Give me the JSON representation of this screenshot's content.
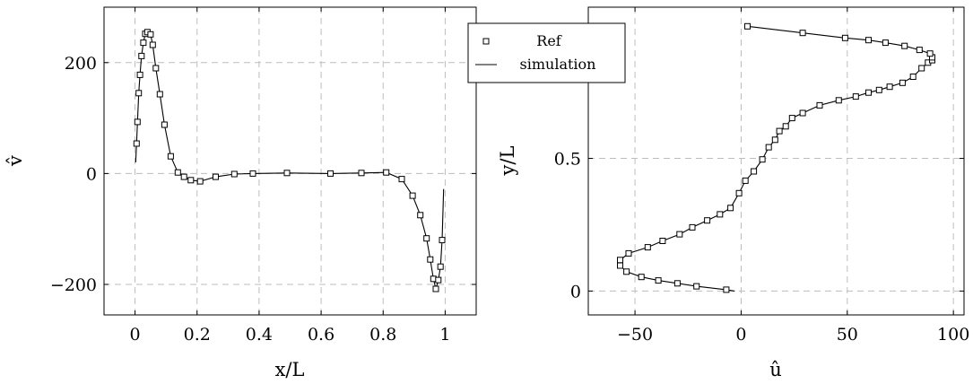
{
  "chart_data": [
    {
      "type": "line",
      "xlabel": "x/L",
      "ylabel": "v̂",
      "xlim": [
        -0.1,
        1.1
      ],
      "ylim": [
        -255,
        300
      ],
      "xticks": [
        0,
        0.2,
        0.4,
        0.6,
        0.8,
        1
      ],
      "xtick_labels": [
        "0",
        "0.2",
        "0.4",
        "0.6",
        "0.8",
        "1"
      ],
      "yticks": [
        -200,
        0,
        200
      ],
      "ytick_labels": [
        "−200",
        "0",
        "200"
      ],
      "grid": true,
      "series": [
        {
          "name": "Ref",
          "style": "markers",
          "marker": "square",
          "x": [
            0.005,
            0.008,
            0.012,
            0.016,
            0.021,
            0.027,
            0.033,
            0.04,
            0.05,
            0.057,
            0.067,
            0.08,
            0.095,
            0.115,
            0.138,
            0.158,
            0.18,
            0.21,
            0.26,
            0.32,
            0.38,
            0.49,
            0.63,
            0.73,
            0.81,
            0.86,
            0.895,
            0.92,
            0.94,
            0.952,
            0.962,
            0.97,
            0.978,
            0.985,
            0.99
          ],
          "y": [
            54,
            93,
            145,
            178,
            212,
            236,
            252,
            255,
            251,
            232,
            190,
            143,
            88,
            31,
            2,
            -6,
            -12,
            -14,
            -6,
            -1,
            0,
            1,
            0,
            1,
            2,
            -10,
            -40,
            -75,
            -117,
            -155,
            -190,
            -208,
            -192,
            -168,
            -120
          ]
        },
        {
          "name": "simulation",
          "style": "line",
          "x": [
            0.002,
            0.005,
            0.008,
            0.012,
            0.016,
            0.021,
            0.027,
            0.033,
            0.04,
            0.047,
            0.05,
            0.057,
            0.067,
            0.08,
            0.095,
            0.115,
            0.138,
            0.158,
            0.18,
            0.21,
            0.26,
            0.32,
            0.38,
            0.49,
            0.63,
            0.73,
            0.81,
            0.86,
            0.895,
            0.92,
            0.94,
            0.952,
            0.962,
            0.97,
            0.978,
            0.985,
            0.99,
            0.995
          ],
          "y": [
            20,
            54,
            93,
            145,
            178,
            212,
            236,
            252,
            255,
            256,
            251,
            232,
            190,
            143,
            88,
            31,
            2,
            -6,
            -12,
            -14,
            -6,
            -1,
            0,
            1,
            0,
            1,
            2,
            -10,
            -40,
            -75,
            -117,
            -155,
            -190,
            -208,
            -192,
            -168,
            -120,
            -28
          ]
        }
      ]
    },
    {
      "type": "line",
      "xlabel": "û",
      "ylabel": "y/L",
      "xlim": [
        -72,
        105
      ],
      "ylim": [
        -0.09,
        1.07
      ],
      "xticks": [
        -50,
        0,
        50,
        100
      ],
      "xtick_labels": [
        "−50",
        "0",
        "50",
        "100"
      ],
      "yticks": [
        0,
        0.5
      ],
      "ytick_labels": [
        "0",
        "0.5"
      ],
      "grid": true,
      "legend": {
        "position": "top-left",
        "entries": [
          {
            "label": "Ref",
            "symbol": "square-marker"
          },
          {
            "label": "simulation",
            "symbol": "line"
          }
        ]
      },
      "series": [
        {
          "name": "Ref",
          "style": "markers",
          "marker": "square",
          "x": [
            -7,
            -21,
            -30,
            -39,
            -47,
            -54,
            -57,
            -57,
            -53,
            -44,
            -37,
            -29,
            -23,
            -16,
            -10,
            -5,
            -1,
            2,
            6,
            10,
            13,
            16,
            18,
            21,
            24,
            29,
            37,
            46,
            54,
            60,
            65,
            70,
            76,
            81,
            85,
            88,
            90,
            90,
            89,
            84,
            77,
            68,
            60,
            49,
            29,
            3
          ],
          "y": [
            0.005,
            0.018,
            0.029,
            0.04,
            0.053,
            0.073,
            0.096,
            0.117,
            0.142,
            0.165,
            0.189,
            0.214,
            0.24,
            0.266,
            0.289,
            0.313,
            0.369,
            0.416,
            0.451,
            0.496,
            0.542,
            0.57,
            0.603,
            0.621,
            0.652,
            0.671,
            0.7,
            0.719,
            0.733,
            0.748,
            0.758,
            0.77,
            0.785,
            0.808,
            0.84,
            0.861,
            0.87,
            0.881,
            0.895,
            0.909,
            0.924,
            0.936,
            0.946,
            0.954,
            0.973,
            0.998
          ]
        },
        {
          "name": "simulation",
          "style": "line",
          "x": [
            -3,
            -7,
            -21,
            -30,
            -39,
            -47,
            -54,
            -57,
            -57,
            -53,
            -44,
            -37,
            -29,
            -23,
            -16,
            -10,
            -5,
            -1,
            2,
            6,
            10,
            13,
            16,
            18,
            21,
            24,
            29,
            37,
            46,
            54,
            60,
            65,
            70,
            76,
            81,
            85,
            88,
            90,
            90,
            89,
            84,
            77,
            68,
            60,
            49,
            29,
            3
          ],
          "y": [
            0.0,
            0.005,
            0.018,
            0.029,
            0.04,
            0.053,
            0.073,
            0.096,
            0.117,
            0.142,
            0.165,
            0.189,
            0.214,
            0.24,
            0.266,
            0.289,
            0.313,
            0.369,
            0.416,
            0.451,
            0.496,
            0.542,
            0.57,
            0.603,
            0.621,
            0.652,
            0.671,
            0.7,
            0.719,
            0.733,
            0.748,
            0.758,
            0.77,
            0.785,
            0.808,
            0.84,
            0.861,
            0.87,
            0.881,
            0.895,
            0.909,
            0.924,
            0.936,
            0.946,
            0.954,
            0.973,
            0.998
          ]
        }
      ]
    }
  ]
}
